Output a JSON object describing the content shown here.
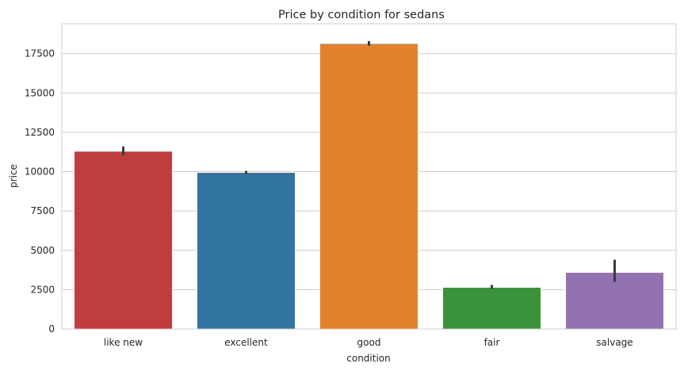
{
  "chart_data": {
    "type": "bar",
    "title": "Price by condition for sedans",
    "xlabel": "condition",
    "ylabel": "price",
    "categories": [
      "like new",
      "excellent",
      "good",
      "fair",
      "salvage"
    ],
    "values": [
      11300,
      9950,
      18150,
      2650,
      3600
    ],
    "error_low": [
      11050,
      9850,
      18000,
      2550,
      3000
    ],
    "error_high": [
      11600,
      10050,
      18300,
      2800,
      4400
    ],
    "colors": [
      "#c03d3e",
      "#3274a1",
      "#e1812c",
      "#3a923a",
      "#9372b2"
    ],
    "yticks": [
      0,
      2500,
      5000,
      7500,
      10000,
      12500,
      15000,
      17500
    ],
    "ylim": [
      0,
      19400
    ],
    "grid": true,
    "legend": "none"
  }
}
